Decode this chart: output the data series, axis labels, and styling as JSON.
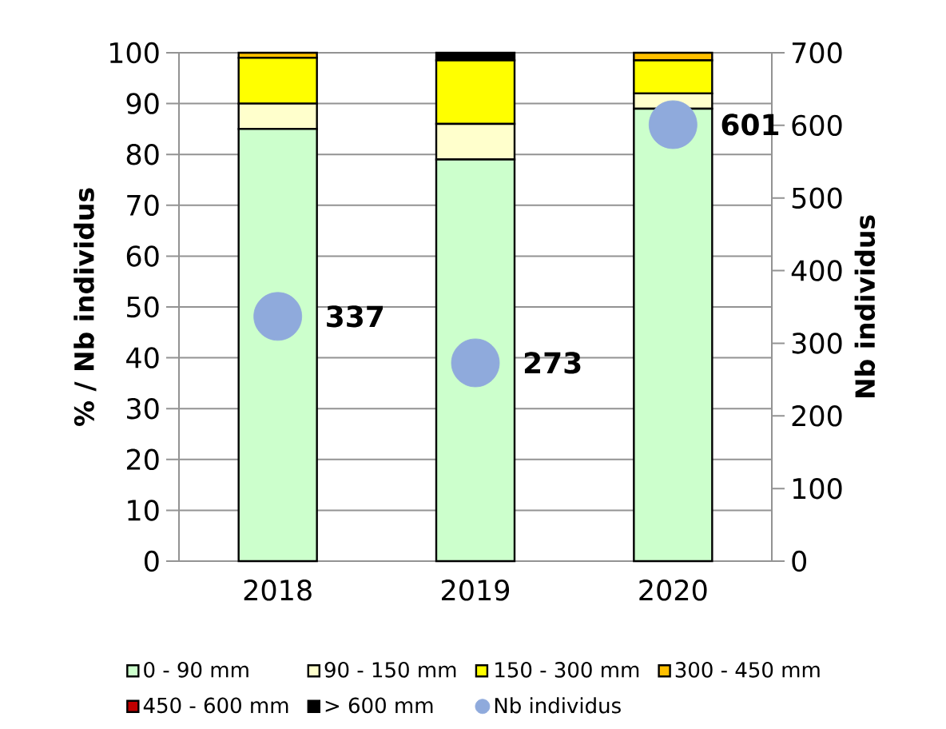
{
  "chart_data": {
    "type": "bar",
    "stacked": true,
    "categories": [
      "2018",
      "2019",
      "2020"
    ],
    "series": [
      {
        "name": "0 - 90 mm",
        "color": "#ccffcc",
        "values": [
          85,
          79,
          89
        ]
      },
      {
        "name": "90 - 150 mm",
        "color": "#ffffcc",
        "values": [
          5,
          7,
          3
        ]
      },
      {
        "name": "150 - 300 mm",
        "color": "#ffff00",
        "values": [
          9,
          12.5,
          6.5
        ]
      },
      {
        "name": "300 - 450 mm",
        "color": "#ffc000",
        "values": [
          1,
          0,
          1.5
        ]
      },
      {
        "name": "450 - 600 mm",
        "color": "#c00000",
        "values": [
          0,
          0,
          0
        ]
      },
      {
        "name": "> 600 mm",
        "color": "#000000",
        "values": [
          0,
          1.5,
          0
        ]
      },
      {
        "name": "Nb individus",
        "type": "scatter",
        "axis": "y2",
        "marker": "circle",
        "color": "#8faadc",
        "values": [
          337,
          273,
          601
        ],
        "value_labels": [
          "337",
          "273",
          "601"
        ]
      }
    ],
    "ylabel": "% / Nb individus",
    "y2label": "Nb individus",
    "ylim": [
      0,
      100
    ],
    "yticks": [
      0,
      10,
      20,
      30,
      40,
      50,
      60,
      70,
      80,
      90,
      100
    ],
    "y2lim": [
      0,
      700
    ],
    "y2ticks": [
      0,
      100,
      200,
      300,
      400,
      500,
      600,
      700
    ],
    "grid": "y",
    "legend": "bottom"
  }
}
